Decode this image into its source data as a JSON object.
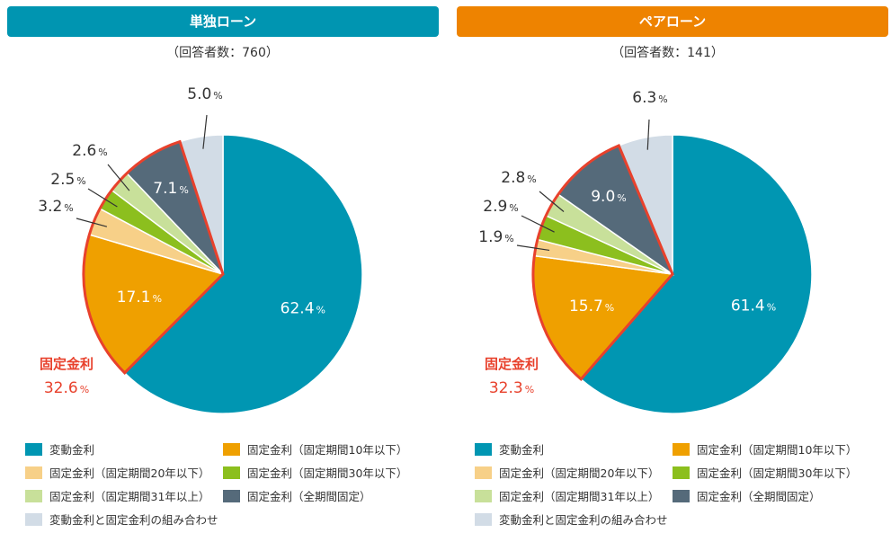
{
  "colors": {
    "single_header": "#0095B1",
    "pair_header": "#EE8300",
    "highlight": "#E8412C"
  },
  "chart_data": [
    {
      "type": "pie",
      "title": "単独ローン",
      "subtitle": "（回答者数：760）",
      "unit": "%",
      "categories": [
        "変動金利",
        "固定金利（固定期間10年以下）",
        "固定金利（固定期間20年以下）",
        "固定金利（固定期間30年以下）",
        "固定金利（固定期間31年以上）",
        "固定金利（全期間固定）",
        "変動金利と固定金利の組み合わせ"
      ],
      "values": [
        62.4,
        17.1,
        3.2,
        2.5,
        2.6,
        7.1,
        5.0
      ],
      "labels": [
        "62.4",
        "17.1",
        "3.2",
        "2.5",
        "2.6",
        "7.1",
        "5.0"
      ],
      "colors": [
        "#0096B2",
        "#EFA000",
        "#F7D088",
        "#8CBF1E",
        "#C8E09A",
        "#556A7A",
        "#D2DCE6"
      ],
      "annotation": {
        "label": "固定金利",
        "value": "32.6"
      },
      "legend_position": "bottom"
    },
    {
      "type": "pie",
      "title": "ペアローン",
      "subtitle": "（回答者数：141）",
      "unit": "%",
      "categories": [
        "変動金利",
        "固定金利（固定期間10年以下）",
        "固定金利（固定期間20年以下）",
        "固定金利（固定期間30年以下）",
        "固定金利（固定期間31年以上）",
        "固定金利（全期間固定）",
        "変動金利と固定金利の組み合わせ"
      ],
      "values": [
        61.4,
        15.7,
        1.9,
        2.9,
        2.8,
        9.0,
        6.3
      ],
      "labels": [
        "61.4",
        "15.7",
        "1.9",
        "2.9",
        "2.8",
        "9.0",
        "6.3"
      ],
      "colors": [
        "#0096B2",
        "#EFA000",
        "#F7D088",
        "#8CBF1E",
        "#C8E09A",
        "#556A7A",
        "#D2DCE6"
      ],
      "annotation": {
        "label": "固定金利",
        "value": "32.3"
      },
      "legend_position": "bottom"
    }
  ]
}
